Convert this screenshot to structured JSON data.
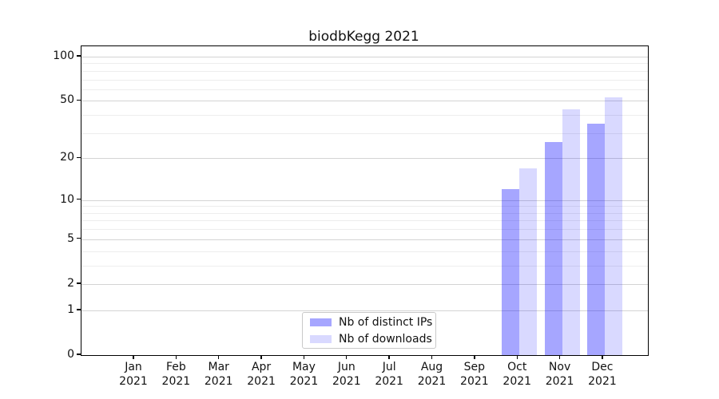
{
  "chart_data": {
    "type": "bar",
    "title": "biodbKegg 2021",
    "categories": [
      "Jan 2021",
      "Feb 2021",
      "Mar 2021",
      "Apr 2021",
      "May 2021",
      "Jun 2021",
      "Jul 2021",
      "Aug 2021",
      "Sep 2021",
      "Oct 2021",
      "Nov 2021",
      "Dec 2021"
    ],
    "series": [
      {
        "name": "Nb of distinct IPs",
        "color": "#0000ff",
        "alpha": 0.35,
        "fill_hex_on_white": "#a6a6ff",
        "values": [
          null,
          null,
          null,
          null,
          null,
          null,
          null,
          null,
          null,
          12,
          26,
          35
        ]
      },
      {
        "name": "Nb of downloads",
        "color": "#0000ff",
        "alpha": 0.15,
        "fill_hex_on_white": "#d9d9ff",
        "values": [
          null,
          null,
          null,
          null,
          null,
          null,
          null,
          null,
          null,
          17,
          44,
          53
        ]
      }
    ],
    "yscale": "log1p",
    "ylim": [
      0,
      100
    ],
    "yticks_major": [
      0,
      1,
      2,
      5,
      10,
      20,
      50,
      100
    ],
    "yticks_minor": [
      3,
      4,
      6,
      7,
      8,
      9,
      30,
      40,
      60,
      70,
      80,
      90
    ],
    "grid": true,
    "legend_location": "lower center",
    "axis_color": "#000000",
    "major_grid_color": "#d4d4d4",
    "minor_grid_color": "#ededed"
  }
}
